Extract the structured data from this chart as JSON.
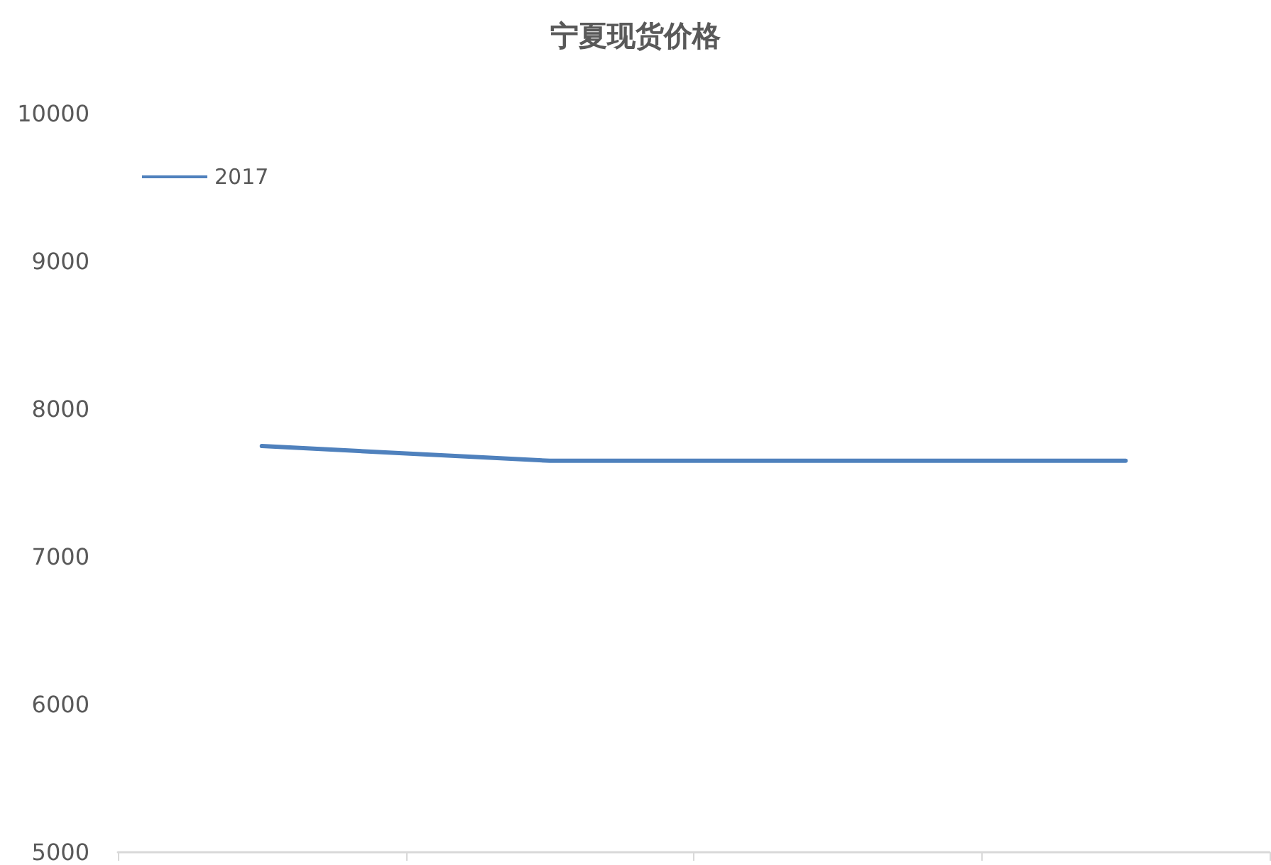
{
  "chart_data": {
    "type": "line",
    "title": "宁夏现货价格",
    "categories": [
      null,
      null,
      null,
      null
    ],
    "series": [
      {
        "name": "2017",
        "color": "#4f81bd",
        "values": [
          7750,
          7650,
          7650,
          7650
        ]
      }
    ],
    "ylim": [
      5000,
      10000
    ],
    "yticks": [
      5000,
      6000,
      7000,
      8000,
      9000,
      10000
    ],
    "grid": false,
    "legend": "top left",
    "marker": "none",
    "line_style": "solid"
  }
}
